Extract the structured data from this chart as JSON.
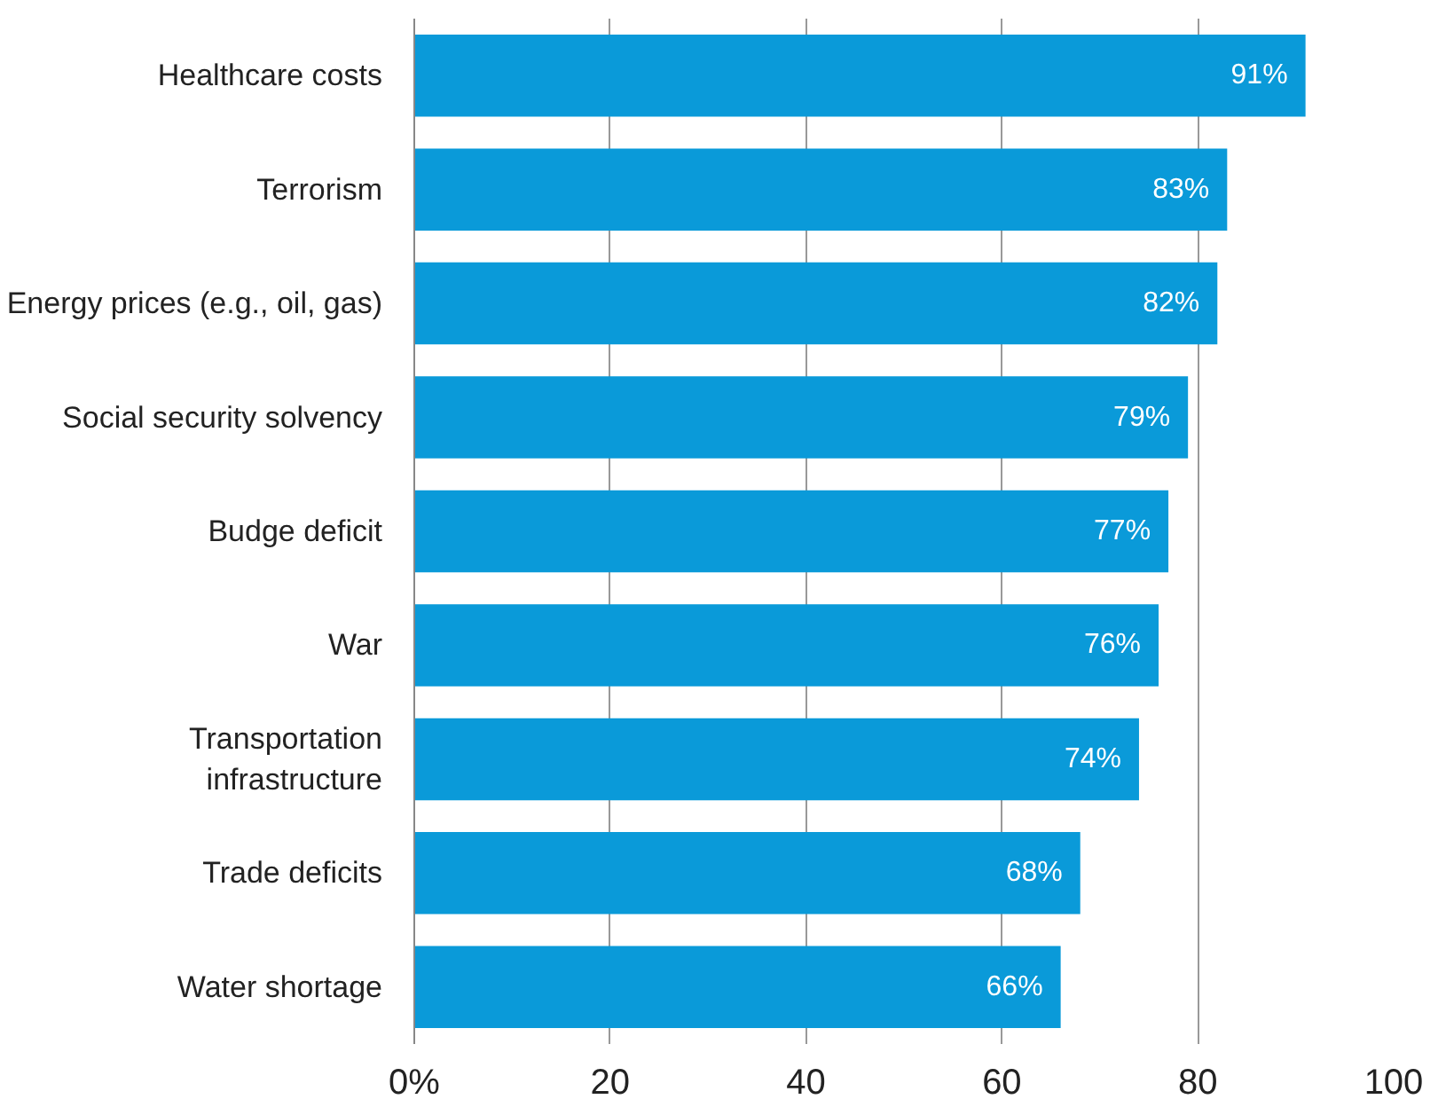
{
  "chart_data": {
    "type": "bar",
    "orientation": "horizontal",
    "categories": [
      "Healthcare costs",
      "Terrorism",
      "Energy prices (e.g., oil, gas)",
      "Social security solvency",
      "Budge deficit",
      "War",
      "Transportation\ninfrastructure",
      "Trade deficits",
      "Water shortage"
    ],
    "values": [
      91,
      83,
      82,
      79,
      77,
      76,
      74,
      68,
      66
    ],
    "value_labels": [
      "91%",
      "83%",
      "82%",
      "79%",
      "77%",
      "76%",
      "74%",
      "68%",
      "66%"
    ],
    "color": "#0a9ad9",
    "xlim": [
      0,
      100
    ],
    "xticks": [
      {
        "value": 0,
        "label": "0%"
      },
      20,
      40,
      60,
      80,
      100
    ],
    "grid": "x"
  }
}
